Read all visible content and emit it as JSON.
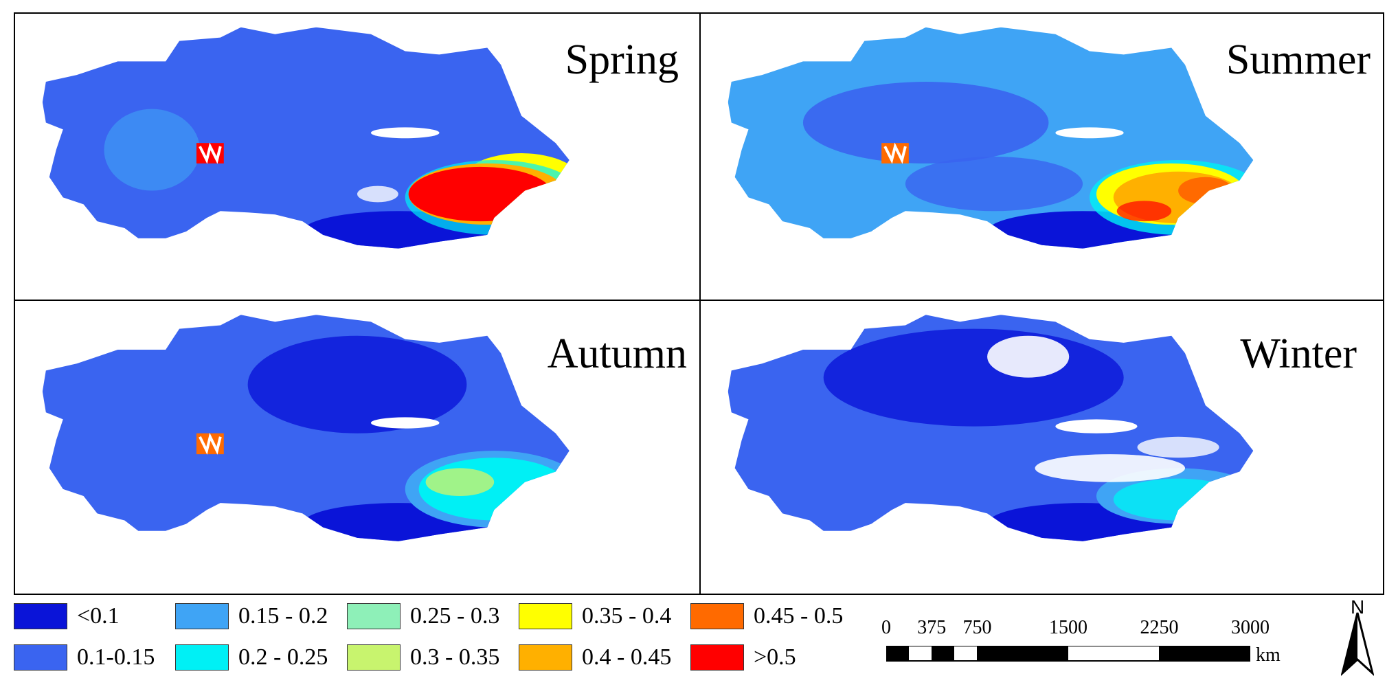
{
  "panels": {
    "spring": "Spring",
    "summer": "Summer",
    "autumn": "Autumn",
    "winter": "Winter"
  },
  "legend": [
    {
      "label": "<0.1",
      "color": "#0a14d8"
    },
    {
      "label": "0.1-0.15",
      "color": "#3a64f0"
    },
    {
      "label": "0.15 - 0.2",
      "color": "#3fa4f5"
    },
    {
      "label": "0.2 - 0.25",
      "color": "#00f0f5"
    },
    {
      "label": "0.25 - 0.3",
      "color": "#8ef0b8"
    },
    {
      "label": "0.3 - 0.35",
      "color": "#c8f46e"
    },
    {
      "label": "0.35 - 0.4",
      "color": "#ffff00"
    },
    {
      "label": "0.4 - 0.45",
      "color": "#ffb000"
    },
    {
      "label": "0.45 - 0.5",
      "color": "#ff6a00"
    },
    {
      "label": ">0.5",
      "color": "#ff0000"
    }
  ],
  "scale_bar": {
    "ticks": [
      "0",
      "375",
      "750",
      "1500",
      "2250",
      "3000"
    ],
    "unit": "km"
  },
  "north_arrow": "N",
  "colors": {
    "lt01": "#0a14d8",
    "c010": "#3a64f0",
    "c015": "#3fa4f5",
    "c020": "#00f0f5",
    "c025": "#8ef0b8",
    "c030": "#c8f46e",
    "c035": "#ffff00",
    "c040": "#ffb000",
    "c045": "#ff6a00",
    "gt05": "#ff0000",
    "snow": "#ffffff"
  }
}
